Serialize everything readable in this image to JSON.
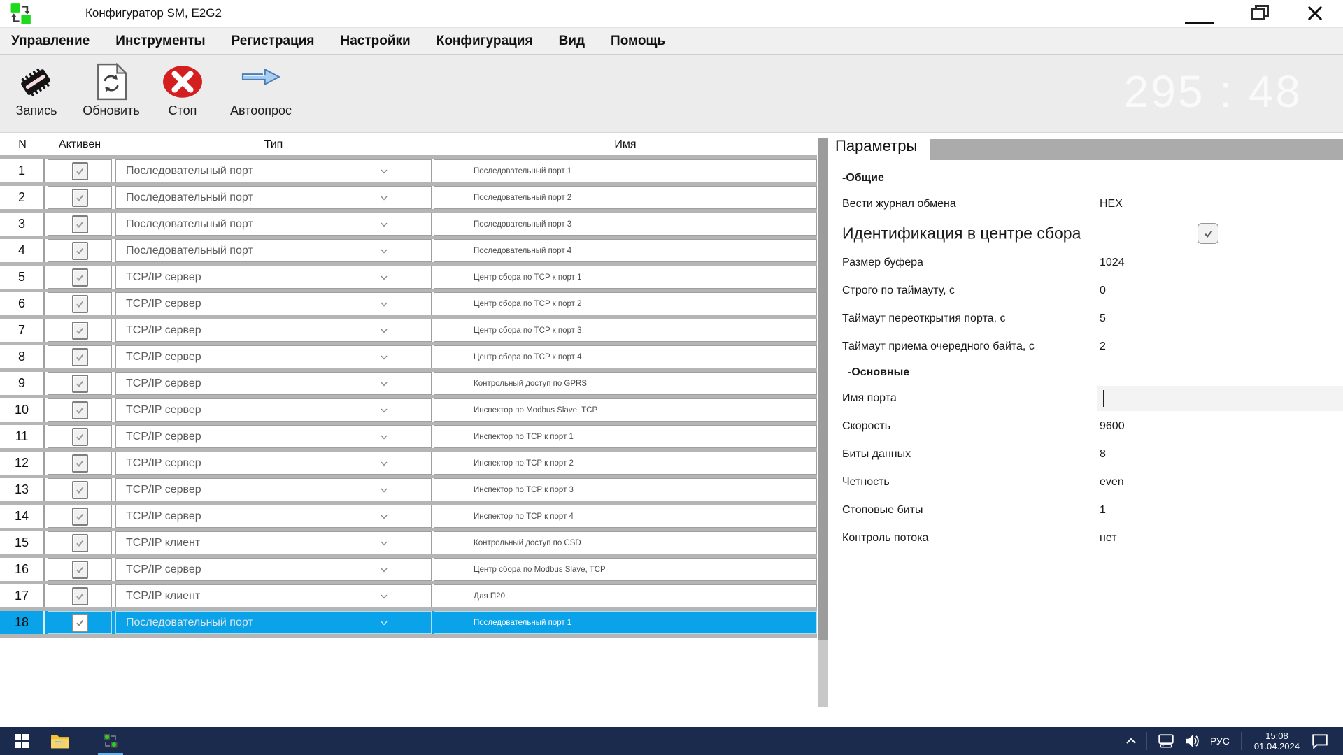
{
  "window": {
    "title": "Конфигуратор SM, E2G2"
  },
  "menu": {
    "items": [
      "Управление",
      "Инструменты",
      "Регистрация",
      "Настройки",
      "Конфигурация",
      "Вид",
      "Помощь"
    ]
  },
  "toolbar": {
    "buttons": [
      {
        "label": "Запись",
        "icon": "chip-icon"
      },
      {
        "label": "Обновить",
        "icon": "refresh-document-icon"
      },
      {
        "label": "Стоп",
        "icon": "stop-icon"
      },
      {
        "label": "Автоопрос",
        "icon": "arrow-right-icon"
      }
    ],
    "counter": "295 : 48"
  },
  "table": {
    "headers": [
      "N",
      "Активен",
      "Тип",
      "Имя"
    ],
    "rows": [
      {
        "n": "1",
        "active": true,
        "type": "Последовательный порт",
        "name": "Последовательный порт 1",
        "selected": false
      },
      {
        "n": "2",
        "active": true,
        "type": "Последовательный порт",
        "name": "Последовательный порт 2",
        "selected": false
      },
      {
        "n": "3",
        "active": true,
        "type": "Последовательный порт",
        "name": "Последовательный порт 3",
        "selected": false
      },
      {
        "n": "4",
        "active": true,
        "type": "Последовательный порт",
        "name": "Последовательный порт 4",
        "selected": false
      },
      {
        "n": "5",
        "active": true,
        "type": "TCP/IP сервер",
        "name": "Центр сбора по TCP к порт 1",
        "selected": false
      },
      {
        "n": "6",
        "active": true,
        "type": "TCP/IP сервер",
        "name": "Центр сбора по TCP к порт 2",
        "selected": false
      },
      {
        "n": "7",
        "active": true,
        "type": "TCP/IP сервер",
        "name": "Центр сбора по TCP к порт 3",
        "selected": false
      },
      {
        "n": "8",
        "active": true,
        "type": "TCP/IP сервер",
        "name": "Центр сбора по TCP к порт 4",
        "selected": false
      },
      {
        "n": "9",
        "active": true,
        "type": "TCP/IP сервер",
        "name": "Контрольный доступ по GPRS",
        "selected": false
      },
      {
        "n": "10",
        "active": true,
        "type": "TCP/IP сервер",
        "name": "Инспектор по Modbus Slave. TCP",
        "selected": false
      },
      {
        "n": "11",
        "active": true,
        "type": "TCP/IP сервер",
        "name": "Инспектор по TCP к порт 1",
        "selected": false
      },
      {
        "n": "12",
        "active": true,
        "type": "TCP/IP сервер",
        "name": "Инспектор по TCP к порт 2",
        "selected": false
      },
      {
        "n": "13",
        "active": true,
        "type": "TCP/IP сервер",
        "name": "Инспектор по TCP к порт 3",
        "selected": false
      },
      {
        "n": "14",
        "active": true,
        "type": "TCP/IP сервер",
        "name": "Инспектор по TCP к порт 4",
        "selected": false
      },
      {
        "n": "15",
        "active": true,
        "type": "TCP/IP клиент",
        "name": "Контрольный доступ по CSD",
        "selected": false
      },
      {
        "n": "16",
        "active": true,
        "type": "TCP/IP сервер",
        "name": "Центр сбора по Modbus Slave, TCP",
        "selected": false
      },
      {
        "n": "17",
        "active": true,
        "type": "TCP/IP клиент",
        "name": "Для П20",
        "selected": false
      },
      {
        "n": "18",
        "active": true,
        "type": "Последовательный порт",
        "name": "Последовательный порт 1",
        "selected": true
      }
    ]
  },
  "params": {
    "title": "Параметры",
    "rows": [
      {
        "kind": "section",
        "label": "-Общие",
        "indented": false
      },
      {
        "kind": "field",
        "label": "Вести журнал обмена",
        "value": "HEX"
      },
      {
        "kind": "big",
        "label": "Идентификация в центре сбора",
        "checked": true
      },
      {
        "kind": "field",
        "label": "Размер буфера",
        "value": "1024"
      },
      {
        "kind": "field",
        "label": "Строго по таймауту, с",
        "value": "0"
      },
      {
        "kind": "field",
        "label": "Таймаут переоткрытия порта, с",
        "value": "5"
      },
      {
        "kind": "field",
        "label": "Таймаут приема очередного байта, с",
        "value": "2"
      },
      {
        "kind": "section",
        "label": "-Основные",
        "indented": true
      },
      {
        "kind": "input",
        "label": "Имя порта",
        "value": ""
      },
      {
        "kind": "field",
        "label": "Скорость",
        "value": "9600"
      },
      {
        "kind": "field",
        "label": "Биты данных",
        "value": "8"
      },
      {
        "kind": "field",
        "label": "Четность",
        "value": "even"
      },
      {
        "kind": "field",
        "label": "Стоповые биты",
        "value": "1"
      },
      {
        "kind": "field",
        "label": "Контроль потока",
        "value": "нет"
      }
    ]
  },
  "taskbar": {
    "language": "РУС",
    "time": "15:08",
    "date": "01.04.2024"
  },
  "colors": {
    "selection": "#0aa2e8",
    "taskbar": "#1b2b4e",
    "taskbar_accent": "#68b1e8",
    "tab_gray": "#ababab",
    "toolbar_bg": "#ececec",
    "stop_red": "#d31f1f",
    "app_green": "#1ed91e"
  }
}
